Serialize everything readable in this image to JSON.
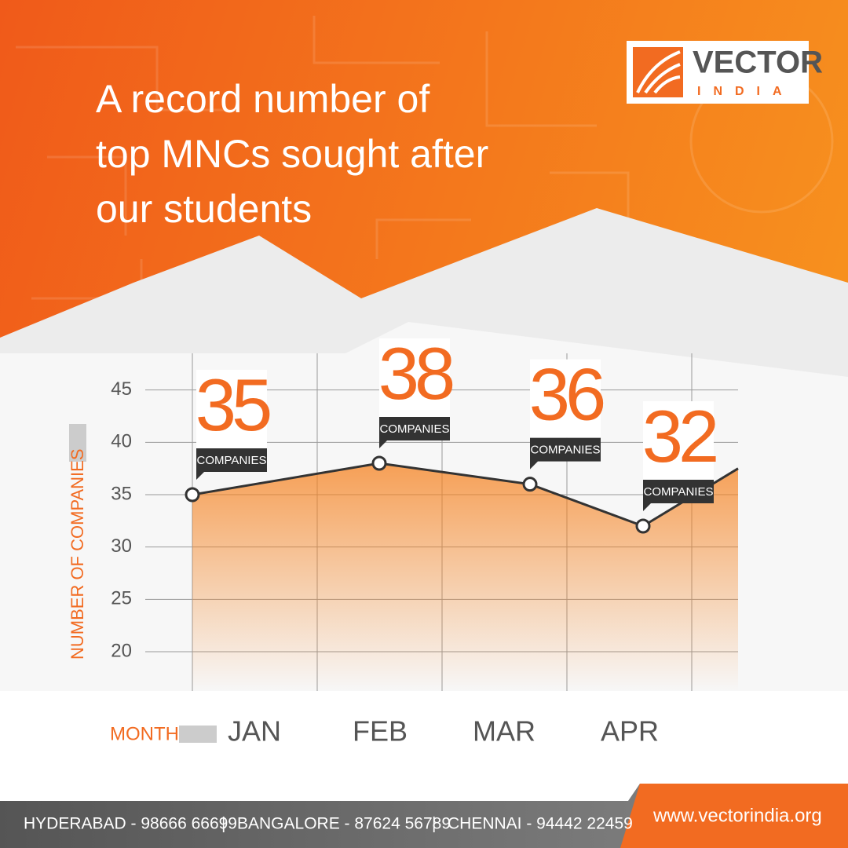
{
  "header": {
    "title": [
      "A record number of",
      "top MNCs sought after",
      "our students"
    ]
  },
  "logo": {
    "name": "VECTOR",
    "sub": "INDIA"
  },
  "chart_data": {
    "type": "line",
    "categories": [
      "JAN",
      "FEB",
      "MAR",
      "APR",
      null
    ],
    "values": [
      35,
      38,
      36,
      32,
      37.5
    ],
    "unit_label": "COMPANIES",
    "x_label": "MONTH",
    "y_label": "NUMBER OF COMPANIES",
    "ylim": [
      16.25,
      48.5
    ],
    "yticks": [
      20,
      25,
      30,
      35,
      40,
      45
    ],
    "grid": true,
    "color": "#333333",
    "area_color": "#f58220",
    "label_color": "#f26b21"
  },
  "footer": {
    "contacts": [
      "HYDERABAD - 98666 66699",
      "BANGALORE - 87624 56789",
      "CHENNAI - 94442 22459"
    ],
    "website": "www.vectorindia.org"
  }
}
